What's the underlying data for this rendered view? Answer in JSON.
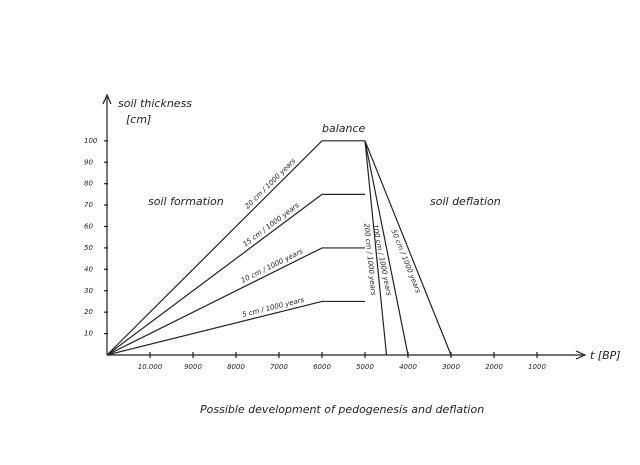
{
  "chart_data": {
    "type": "line",
    "y_label": [
      "soil thickness",
      "[cm]"
    ],
    "x_label": "t [BP]",
    "caption": "Possible development of pedogenesis and deflation",
    "annotations": [
      "balance",
      "soil formation",
      "soil deflation"
    ],
    "xlim": [
      11000,
      0
    ],
    "xticks": [
      {
        "value": 10000,
        "label": "10.000"
      },
      9000,
      8000,
      7000,
      6000,
      5000,
      4000,
      3000,
      2000,
      1000
    ],
    "ylim": [
      0,
      120
    ],
    "yticks": [
      10,
      20,
      30,
      40,
      50,
      60,
      70,
      80,
      90,
      100
    ],
    "grid": false,
    "series": [
      {
        "name": "20 cm / 1000 years",
        "color": "#111111",
        "x": [
          11000,
          6000,
          5000
        ],
        "values": [
          0,
          100,
          100
        ]
      },
      {
        "name": "15 cm / 1000 years",
        "color": "#111111",
        "x": [
          11000,
          6000,
          5000
        ],
        "values": [
          0,
          75,
          75
        ]
      },
      {
        "name": "10 cm / 1000 years",
        "color": "#111111",
        "x": [
          11000,
          6000,
          5000
        ],
        "values": [
          0,
          50,
          50
        ]
      },
      {
        "name": "5 cm / 1000 years",
        "color": "#111111",
        "x": [
          11000,
          6000,
          5000
        ],
        "values": [
          0,
          25,
          25
        ]
      },
      {
        "name": "200 cm / 1000 years",
        "color": "#111111",
        "x": [
          5000,
          4500
        ],
        "values": [
          100,
          0
        ]
      },
      {
        "name": "100 cm / 1000 years",
        "color": "#111111",
        "x": [
          5000,
          4000
        ],
        "values": [
          100,
          0
        ]
      },
      {
        "name": "50 cm / 1000 years",
        "color": "#111111",
        "x": [
          5000,
          3000
        ],
        "values": [
          100,
          0
        ]
      }
    ]
  }
}
